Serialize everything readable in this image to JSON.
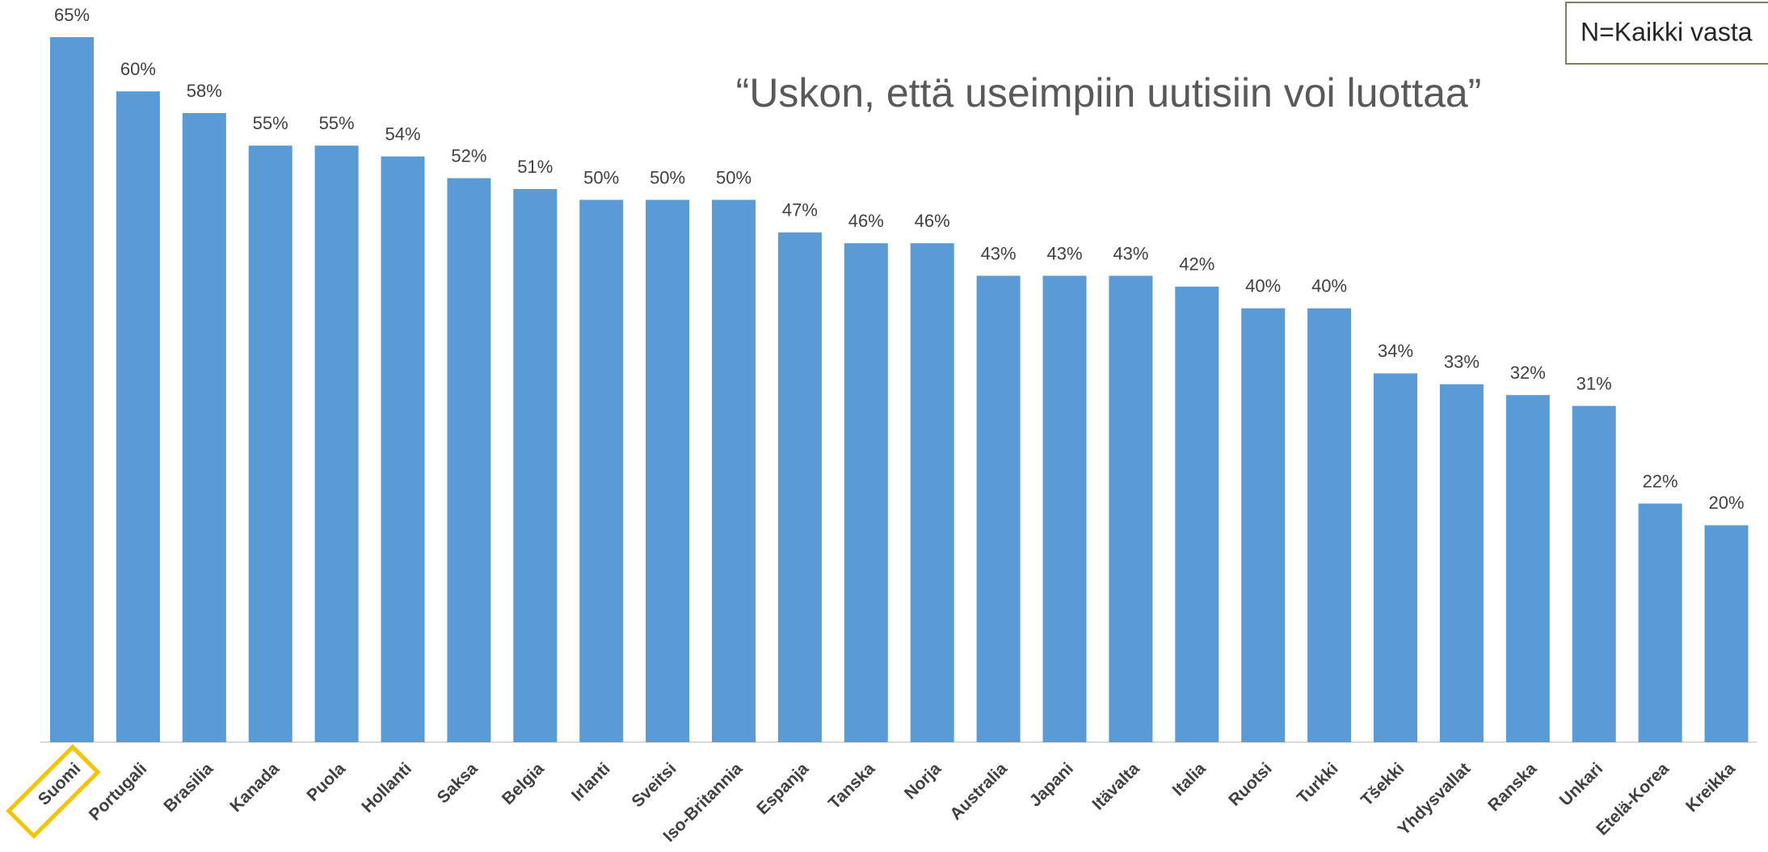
{
  "chart_data": {
    "type": "bar",
    "title": "“Uskon, että useimpiin uutisiin voi luottaa”",
    "note": "N=Kaikki vasta",
    "categories": [
      "Suomi",
      "Portugali",
      "Brasilia",
      "Kanada",
      "Puola",
      "Hollanti",
      "Saksa",
      "Belgia",
      "Irlanti",
      "Sveitsi",
      "Iso-Britannia",
      "Espanja",
      "Tanska",
      "Norja",
      "Australia",
      "Japani",
      "Itävalta",
      "Italia",
      "Ruotsi",
      "Turkki",
      "Tšekki",
      "Yhdysvallat",
      "Ranska",
      "Unkari",
      "Etelä-Korea",
      "Kreikka"
    ],
    "values": [
      65,
      60,
      58,
      55,
      55,
      54,
      52,
      51,
      50,
      50,
      50,
      47,
      46,
      46,
      43,
      43,
      43,
      42,
      40,
      40,
      34,
      33,
      32,
      31,
      22,
      20
    ],
    "value_labels": [
      "65%",
      "60%",
      "58%",
      "55%",
      "55%",
      "54%",
      "52%",
      "51%",
      "50%",
      "50%",
      "50%",
      "47%",
      "46%",
      "46%",
      "43%",
      "43%",
      "43%",
      "42%",
      "40%",
      "40%",
      "34%",
      "33%",
      "32%",
      "31%",
      "22%",
      "20%"
    ],
    "color": "#5b9bd5",
    "highlight": "Suomi"
  }
}
